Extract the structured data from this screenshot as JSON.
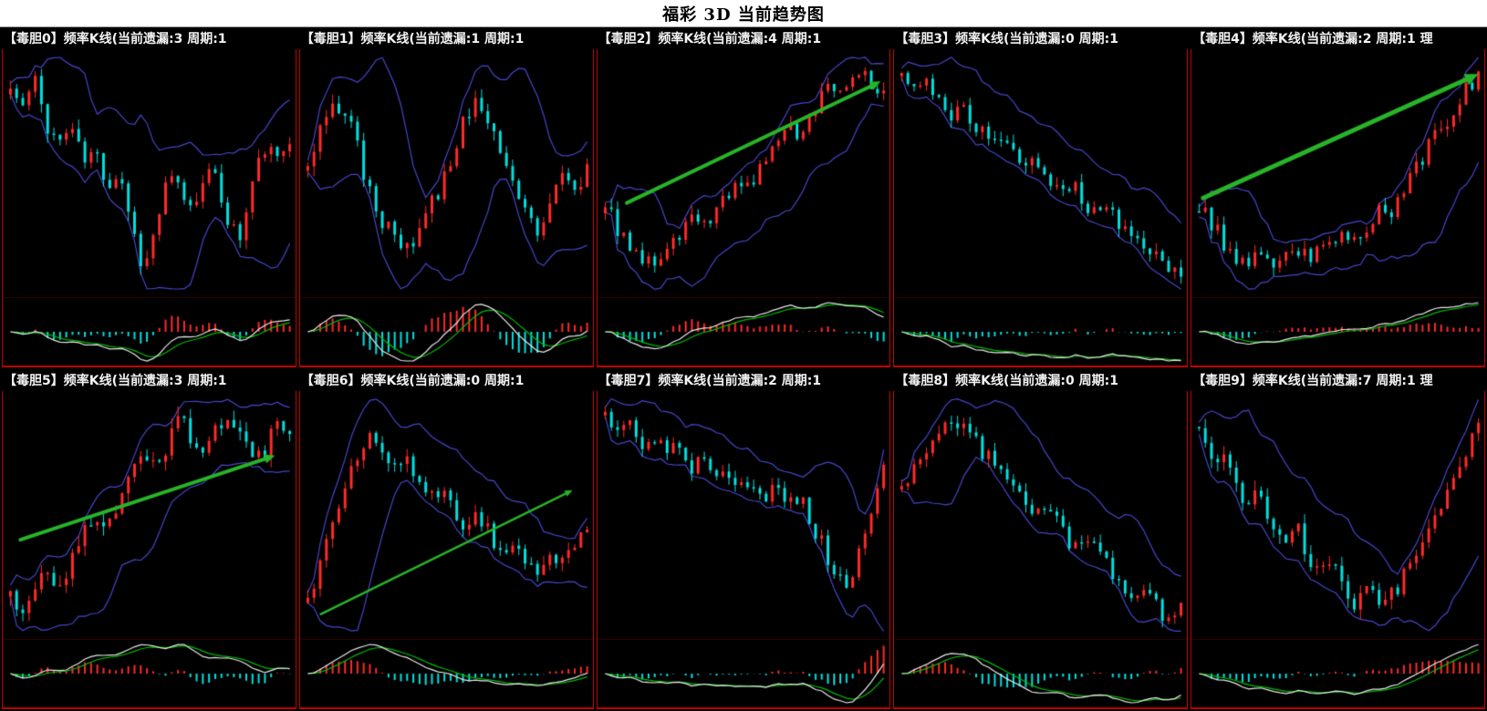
{
  "title": "福彩 3D 当前趋势图",
  "colors": {
    "background": "#000000",
    "titlebar_bg": "#ffffff",
    "title_text": "#000000",
    "header_text": "#f2f2f2",
    "frame_red": "#c00000",
    "candle_up": "#ff2a2a",
    "candle_down": "#00e0e0",
    "bollinger": "#4646cc",
    "macd_dif": "#e8e8e8",
    "macd_dea": "#00bb00",
    "hist_pos": "#ff2a2a",
    "hist_neg": "#00e0e0",
    "arrow_green": "#28b428"
  },
  "chart_data": [
    {
      "type": "candlestick",
      "panel_id": "毒胆0",
      "header": "【毒胆0】频率K线(当前遗漏:3 周期:1",
      "current_miss": 3,
      "period": 1,
      "trend": "volatile-sideways-deep-mid-dip",
      "overlays": [
        "bollinger-band-upper",
        "bollinger-band-lower"
      ],
      "sub_indicator": "macd",
      "seed": 11,
      "close_path": [
        85,
        78,
        88,
        72,
        65,
        72,
        58,
        62,
        50,
        55,
        35,
        18,
        35,
        52,
        48,
        40,
        56,
        50,
        36,
        30,
        52,
        64,
        58,
        68
      ],
      "arrow": null
    },
    {
      "type": "candlestick",
      "panel_id": "毒胆1",
      "header": "【毒胆1】频率K线(当前遗漏:1 周期:1",
      "current_miss": 1,
      "period": 1,
      "trend": "double-top-oscillation",
      "overlays": [
        "bollinger-band-upper",
        "bollinger-band-lower"
      ],
      "sub_indicator": "macd",
      "seed": 23,
      "close_path": [
        70,
        80,
        90,
        85,
        75,
        60,
        50,
        42,
        38,
        45,
        52,
        60,
        72,
        85,
        90,
        80,
        68,
        58,
        50,
        45,
        55,
        62,
        58,
        65
      ],
      "arrow": null
    },
    {
      "type": "candlestick",
      "panel_id": "毒胆2",
      "header": "【毒胆2】频率K线(当前遗漏:4 周期:1",
      "current_miss": 4,
      "period": 1,
      "trend": "strong-uptrend",
      "overlays": [
        "bollinger-band-upper",
        "bollinger-band-lower"
      ],
      "sub_indicator": "macd",
      "seed": 37,
      "close_path": [
        40,
        32,
        25,
        20,
        15,
        22,
        28,
        35,
        30,
        38,
        45,
        52,
        48,
        58,
        65,
        72,
        68,
        78,
        85,
        90,
        88,
        95,
        90,
        86
      ],
      "arrow": {
        "x1": 0.1,
        "y1": 0.62,
        "x2": 0.97,
        "y2": 0.13,
        "w": 4
      }
    },
    {
      "type": "candlestick",
      "panel_id": "毒胆3",
      "header": "【毒胆3】频率K线(当前遗漏:0 周期:1",
      "current_miss": 0,
      "period": 1,
      "trend": "steady-downtrend",
      "overlays": [
        "bollinger-band-upper",
        "bollinger-band-lower"
      ],
      "sub_indicator": "macd",
      "seed": 41,
      "close_path": [
        92,
        88,
        90,
        82,
        78,
        80,
        72,
        68,
        70,
        62,
        58,
        60,
        52,
        48,
        50,
        42,
        38,
        40,
        32,
        28,
        25,
        20,
        15,
        10
      ],
      "arrow": null
    },
    {
      "type": "candlestick",
      "panel_id": "毒胆4",
      "header": "【毒胆4】频率K线(当前遗漏:2 周期:1 理",
      "current_miss": 2,
      "period": 1,
      "trend": "bottom-then-strong-rally",
      "overlays": [
        "bollinger-band-upper",
        "bollinger-band-lower"
      ],
      "sub_indicator": "macd",
      "seed": 53,
      "close_path": [
        45,
        38,
        30,
        25,
        20,
        25,
        18,
        22,
        28,
        24,
        30,
        26,
        34,
        30,
        38,
        45,
        42,
        52,
        60,
        68,
        75,
        82,
        90,
        96
      ],
      "arrow": {
        "x1": 0.04,
        "y1": 0.6,
        "x2": 0.98,
        "y2": 0.1,
        "w": 5
      }
    },
    {
      "type": "candlestick",
      "panel_id": "毒胆5",
      "header": "【毒胆5】频率K线(当前遗漏:3 周期:1",
      "current_miss": 3,
      "period": 1,
      "trend": "oscillating-uptrend",
      "overlays": [
        "bollinger-band-upper",
        "bollinger-band-lower"
      ],
      "sub_indicator": "macd",
      "seed": 67,
      "close_path": [
        25,
        20,
        30,
        35,
        28,
        40,
        48,
        55,
        50,
        62,
        70,
        78,
        72,
        80,
        88,
        82,
        75,
        85,
        90,
        80,
        72,
        78,
        85,
        80
      ],
      "arrow": {
        "x1": 0.06,
        "y1": 0.6,
        "x2": 0.93,
        "y2": 0.26,
        "w": 4
      }
    },
    {
      "type": "candlestick",
      "panel_id": "毒胆6",
      "header": "【毒胆6】频率K线(当前遗漏:0 周期:1",
      "current_miss": 0,
      "period": 1,
      "trend": "early-peak-then-decline",
      "overlays": [
        "bollinger-band-upper",
        "bollinger-band-lower"
      ],
      "sub_indicator": "macd",
      "seed": 71,
      "close_path": [
        30,
        45,
        60,
        75,
        85,
        92,
        88,
        80,
        84,
        76,
        70,
        74,
        66,
        60,
        64,
        56,
        50,
        54,
        46,
        42,
        48,
        44,
        52,
        58
      ],
      "arrow": {
        "x1": 0.07,
        "y1": 0.9,
        "x2": 0.93,
        "y2": 0.4,
        "w": 2.5
      }
    },
    {
      "type": "candlestick",
      "panel_id": "毒胆7",
      "header": "【毒胆7】频率K线(当前遗漏:2 周期:1",
      "current_miss": 2,
      "period": 1,
      "trend": "decline-crash-then-rebound",
      "overlays": [
        "bollinger-band-upper",
        "bollinger-band-lower"
      ],
      "sub_indicator": "macd",
      "seed": 83,
      "close_path": [
        85,
        78,
        82,
        72,
        76,
        68,
        72,
        62,
        66,
        58,
        62,
        52,
        58,
        48,
        54,
        44,
        50,
        38,
        28,
        15,
        10,
        25,
        45,
        60
      ],
      "arrow": null
    },
    {
      "type": "candlestick",
      "panel_id": "毒胆8",
      "header": "【毒胆8】频率K线(当前遗漏:0 周期:1",
      "current_miss": 0,
      "period": 1,
      "trend": "peak-then-long-downtrend",
      "overlays": [
        "bollinger-band-upper",
        "bollinger-band-lower"
      ],
      "sub_indicator": "macd",
      "seed": 97,
      "close_path": [
        65,
        72,
        80,
        88,
        94,
        90,
        84,
        78,
        72,
        66,
        60,
        54,
        58,
        48,
        42,
        46,
        38,
        32,
        26,
        20,
        24,
        15,
        10,
        18
      ],
      "arrow": null
    },
    {
      "type": "candlestick",
      "panel_id": "毒胆9",
      "header": "【毒胆9】频率K线(当前遗漏:7 周期:1 理",
      "current_miss": 7,
      "period": 1,
      "trend": "valley-then-recovery",
      "overlays": [
        "bollinger-band-upper",
        "bollinger-band-lower"
      ],
      "sub_indicator": "macd",
      "seed": 109,
      "close_path": [
        80,
        72,
        76,
        65,
        58,
        62,
        52,
        46,
        50,
        40,
        34,
        38,
        28,
        24,
        30,
        22,
        28,
        36,
        44,
        52,
        60,
        68,
        76,
        84
      ],
      "arrow": null
    }
  ]
}
